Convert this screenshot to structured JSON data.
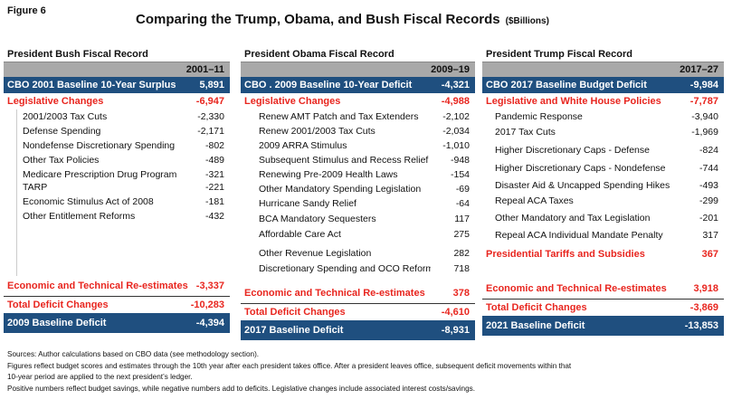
{
  "figure_label": "Figure 6",
  "title": "Comparing the Trump, Obama, and Bush Fiscal Records",
  "unit": "($Billions)",
  "panels": {
    "bush": {
      "title": "President Bush Fiscal Record",
      "period": "2001–11",
      "baseline_label": "CBO  2001 Baseline 10-Year  Surplus",
      "baseline_value": "5,891",
      "leg_label": "Legislative Changes",
      "leg_value": "-6,947",
      "items": [
        {
          "label": "2001/2003 Tax Cuts",
          "value": "-2,330"
        },
        {
          "label": "Defense Spending",
          "value": "-2,171"
        },
        {
          "label": "Nondefense Discretionary Spending",
          "value": "-802"
        },
        {
          "label": "Other Tax Policies",
          "value": "-489"
        },
        {
          "label": "Medicare Prescription Drug Program",
          "value": "-321"
        },
        {
          "label": "TARP",
          "value": "-221"
        },
        {
          "label": "Economic Stimulus Act of 2008",
          "value": "-181"
        },
        {
          "label": "Other Entitlement Reforms",
          "value": "-432"
        }
      ],
      "econ_label": "Economic and Technical Re-estimates",
      "econ_value": "-3,337",
      "total_label": "Total Deficit Changes",
      "total_value": "-10,283",
      "final_label": "2009 Baseline  Deficit",
      "final_value": "-4,394"
    },
    "obama": {
      "title": "President Obama Fiscal Record",
      "period": "2009–19",
      "baseline_label": "CBO . 2009 Baseline 10-Year Deficit",
      "baseline_value": "-4,321",
      "leg_label": "Legislative Changes",
      "leg_value": "-4,988",
      "items": [
        {
          "label": "Renew AMT Patch and Tax Extenders",
          "value": "-2,102"
        },
        {
          "label": "Renew 2001/2003 Tax Cuts",
          "value": "-2,034"
        },
        {
          "label": "2009 ARRA Stimulus",
          "value": "-1,010"
        },
        {
          "label": "Subsequent Stimulus and Recess Relief",
          "value": "-948"
        },
        {
          "label": "Renewing Pre-2009 Health Laws",
          "value": "-154"
        },
        {
          "label": "Other Mandatory Spending Legislation",
          "value": "-69"
        },
        {
          "label": "Hurricane Sandy Relief",
          "value": "-64"
        },
        {
          "label": "BCA Mandatory Sequesters",
          "value": "117"
        },
        {
          "label": "Affordable Care Act",
          "value": "275"
        },
        {
          "label": "Other Revenue Legislation",
          "value": "282"
        },
        {
          "label": "Discretionary Spending and OCO Reforms",
          "value": "718"
        }
      ],
      "econ_label": "Economic and Technical Re-estimates",
      "econ_value": "378",
      "total_label": "Total Deficit Changes",
      "total_value": "-4,610",
      "final_label": "2017 Baseline  Deficit",
      "final_value": "-8,931"
    },
    "trump": {
      "title": "President Trump Fiscal Record",
      "period": "2017–27",
      "baseline_label": "CBO 2017 Baseline Budget Deficit",
      "baseline_value": "-9,984",
      "leg_label": "Legislative and White House Policies",
      "leg_value": "-7,787",
      "items": [
        {
          "label": "Pandemic Response",
          "value": "-3,940"
        },
        {
          "label": "2017 Tax Cuts",
          "value": "-1,969"
        },
        {
          "label": "Higher Discretionary Caps - Defense",
          "value": "-824"
        },
        {
          "label": "Higher Discretionary Caps - Nondefense",
          "value": "-744"
        },
        {
          "label": "Disaster Aid & Uncapped Spending Hikes",
          "value": "-493"
        },
        {
          "label": "Repeal ACA Taxes",
          "value": "-299"
        },
        {
          "label": "Other Mandatory and Tax Legislation",
          "value": "-201"
        },
        {
          "label": "Repeal ACA Individual Mandate Penalty",
          "value": "317"
        }
      ],
      "tariff_label": "Presidential Tariffs and Subsidies",
      "tariff_value": "367",
      "econ_label": "Economic and Technical Re-estimates",
      "econ_value": "3,918",
      "total_label": "Total Deficit Changes",
      "total_value": "-3,869",
      "final_label": "2021 Baseline  Deficit",
      "final_value": "-13,853"
    }
  },
  "notes": [
    "Sources: Author calculations based on CBO data (see methodology section).",
    "Figures reflect budget scores and estimates through the 10th year after each president takes office. After a president leaves office, subsequent deficit movements within that",
    "10-year period are applied to the next president’s ledger.",
    "Positive numbers reflect budget savings, while negative numbers add to deficits. Legislative changes include associated interest costs/savings."
  ]
}
